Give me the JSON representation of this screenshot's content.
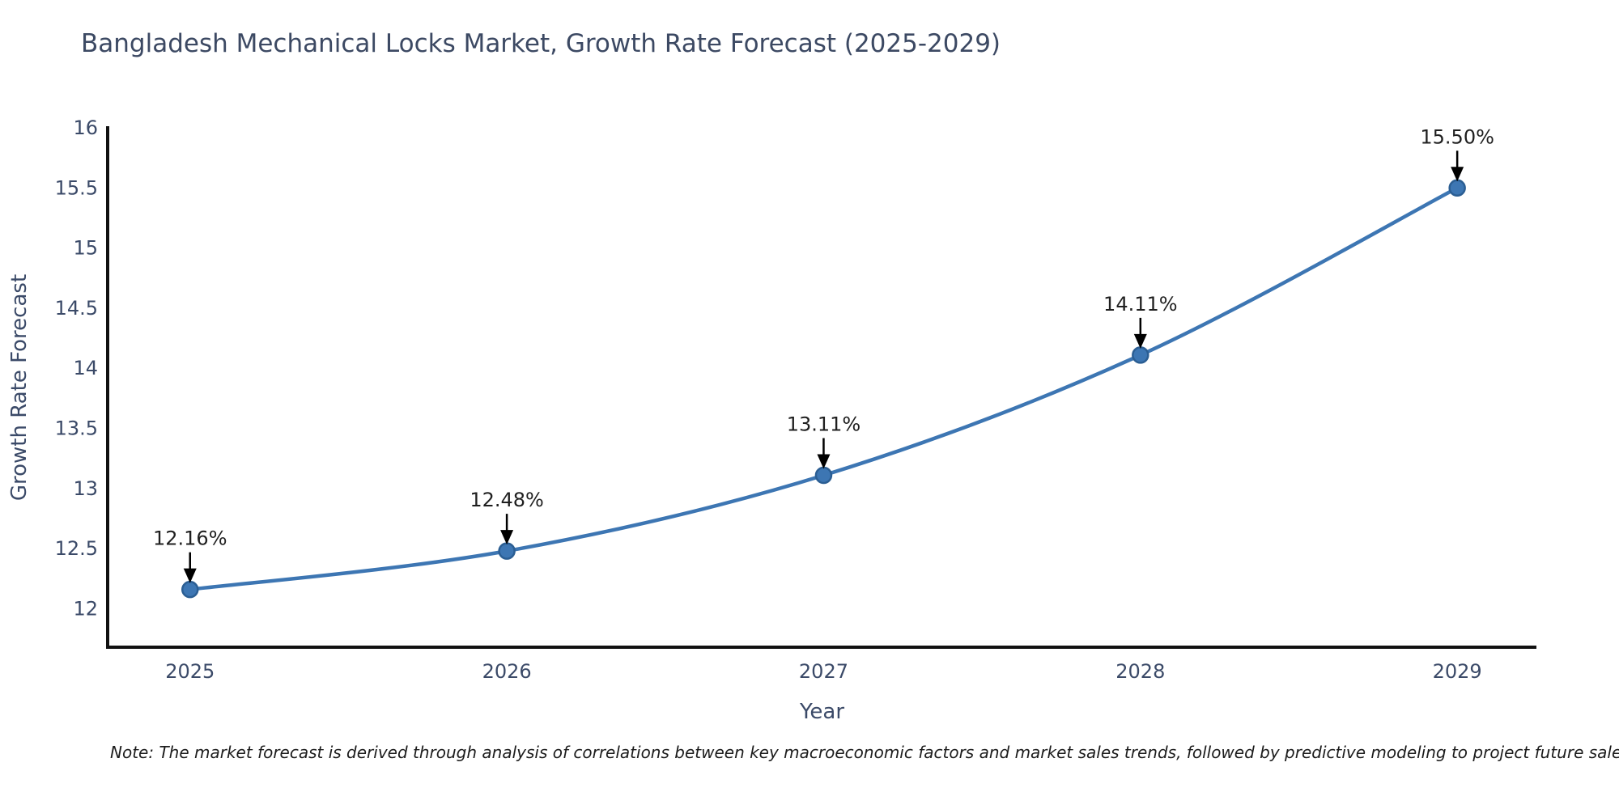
{
  "title": "Bangladesh Mechanical Locks Market, Growth Rate Forecast (2025-2029)",
  "note": "Note: The market forecast is derived through analysis of correlations between key macroeconomic factors and market sales trends, followed by predictive modeling to project future sales",
  "chart_data": {
    "type": "line",
    "title": "Bangladesh Mechanical Locks Market, Growth Rate Forecast (2025-2029)",
    "xlabel": "Year",
    "ylabel": "Growth Rate Forecast",
    "x": [
      2025,
      2026,
      2027,
      2028,
      2029
    ],
    "series": [
      {
        "name": "Growth Rate Forecast",
        "values": [
          12.16,
          12.48,
          13.11,
          14.11,
          15.5
        ]
      }
    ],
    "point_labels": [
      "12.16%",
      "12.48%",
      "13.11%",
      "14.11%",
      "15.50%"
    ],
    "xticks": [
      2025,
      2026,
      2027,
      2028,
      2029
    ],
    "xtick_labels": [
      "2025",
      "2026",
      "2027",
      "2028",
      "2029"
    ],
    "yticks": [
      12,
      12.5,
      13,
      13.5,
      14,
      14.5,
      15,
      15.5,
      16
    ],
    "ytick_labels": [
      "12",
      "12.5",
      "13",
      "13.5",
      "14",
      "14.5",
      "15",
      "15.5",
      "16"
    ],
    "xlim": [
      2024.74,
      2029.25
    ],
    "ylim": [
      11.68,
      16.0
    ],
    "grid": false,
    "legend": "none",
    "line_shape": "spline",
    "colors": {
      "line": "#3d76b3",
      "marker_fill": "#3d76b3",
      "marker_edge": "#2b5e93",
      "axis_line": "#111111",
      "tick_text": "#3b4a68",
      "axis_title_text": "#3b4a68",
      "annotation_text": "#1f1f1f",
      "annotation_arrow": "#000000",
      "background": "#ffffff"
    }
  }
}
